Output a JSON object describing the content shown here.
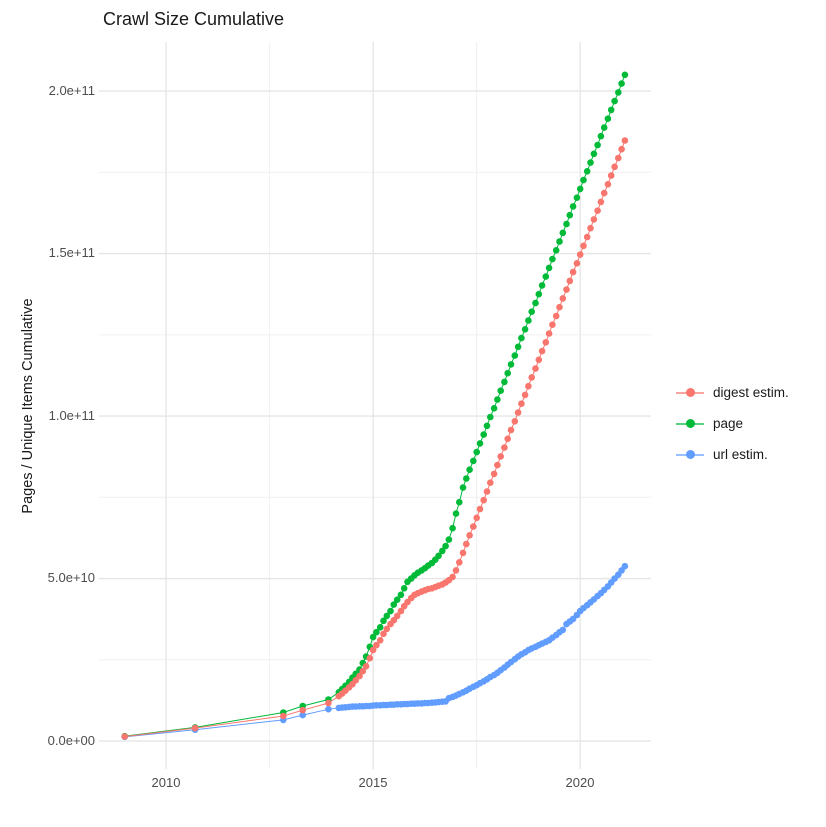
{
  "title": "Crawl Size Cumulative",
  "chart_data": {
    "type": "line",
    "subtype": "scatter-line cumulative time series (ggplot style)",
    "title": "Crawl Size Cumulative",
    "xlabel": "",
    "ylabel": "Pages / Unique Items Cumulative",
    "grid": true,
    "background": "#ffffff",
    "grid_major_color": "#e5e5e5",
    "grid_minor_color": "#f0f0f0",
    "x_tick_labels": [
      "2010",
      "2015",
      "2020"
    ],
    "x_tick_values": [
      2010,
      2015,
      2020
    ],
    "x_minor_values": [
      2012.5,
      2017.5
    ],
    "y_tick_labels": [
      "0.0e+00",
      "5.0e+10",
      "1.0e+11",
      "1.5e+11",
      "2.0e+11"
    ],
    "y_tick_values_billions": [
      0,
      50,
      100,
      150,
      200
    ],
    "y_minor_values_billions": [
      25,
      75,
      125,
      175
    ],
    "xlim": [
      2008.38,
      2021.71
    ],
    "ylim_billions": [
      -8.6,
      215.1
    ],
    "y_unit": "items, stored in billions (1e9)",
    "legend_position": "right",
    "x_years": [
      2009,
      2010.7,
      2012.83,
      2013.3,
      2013.92,
      2014.17,
      2014.25,
      2014.33,
      2014.42,
      2014.5,
      2014.58,
      2014.67,
      2014.75,
      2014.83,
      2014.92,
      2015,
      2015.08,
      2015.17,
      2015.25,
      2015.33,
      2015.42,
      2015.5,
      2015.58,
      2015.67,
      2015.75,
      2015.83,
      2015.92,
      2016,
      2016.08,
      2016.17,
      2016.25,
      2016.33,
      2016.42,
      2016.5,
      2016.58,
      2016.67,
      2016.75,
      2016.83,
      2016.92,
      2017,
      2017.08,
      2017.17,
      2017.25,
      2017.33,
      2017.42,
      2017.5,
      2017.58,
      2017.67,
      2017.75,
      2017.83,
      2017.92,
      2018,
      2018.08,
      2018.17,
      2018.25,
      2018.33,
      2018.42,
      2018.5,
      2018.58,
      2018.67,
      2018.75,
      2018.83,
      2018.92,
      2019,
      2019.08,
      2019.17,
      2019.25,
      2019.33,
      2019.42,
      2019.5,
      2019.58,
      2019.67,
      2019.75,
      2019.83,
      2019.92,
      2020,
      2020.08,
      2020.17,
      2020.25,
      2020.33,
      2020.42,
      2020.5,
      2020.58,
      2020.67,
      2020.75,
      2020.83,
      2020.92,
      2021,
      2021.08
    ],
    "series": [
      {
        "name": "digest estim.",
        "color": "#F8766D",
        "y_billions": [
          1.4,
          4.0,
          7.7,
          9.5,
          11.7,
          13.8,
          14.6,
          15.5,
          16.5,
          17.5,
          18.7,
          20,
          21.5,
          23,
          25.5,
          28,
          29.5,
          31,
          33,
          34.5,
          36,
          37.2,
          38.5,
          40,
          41.5,
          42.8,
          44,
          45,
          45.5,
          46,
          46.4,
          46.8,
          47,
          47.4,
          47.8,
          48.2,
          48.8,
          49.5,
          50.5,
          52.5,
          55,
          57.9,
          60.6,
          63.3,
          66,
          68.7,
          71.4,
          74.1,
          76.8,
          79.5,
          82.2,
          84.9,
          87.6,
          90.3,
          93,
          95.7,
          98.4,
          101.1,
          103.8,
          106.5,
          109.2,
          111.9,
          114.6,
          117.3,
          120,
          122.7,
          125.4,
          128.1,
          130.8,
          133.5,
          136.2,
          138.9,
          141.6,
          144.3,
          147,
          149.7,
          152.4,
          155.1,
          157.8,
          160.5,
          163.2,
          165.9,
          168.6,
          171.3,
          174,
          176.7,
          179.4,
          182.1,
          184.8
        ]
      },
      {
        "name": "page",
        "color": "#00BA38",
        "y_billions": [
          1.5,
          4.2,
          8.8,
          10.8,
          12.8,
          15,
          16,
          17,
          18.2,
          19.5,
          20.7,
          22,
          24,
          26,
          29,
          32,
          33.5,
          35,
          37,
          38.5,
          40,
          42,
          43.5,
          45,
          47,
          49,
          50,
          51,
          51.8,
          52.5,
          53.2,
          54,
          54.8,
          55.8,
          57,
          58.5,
          60,
          62,
          65.5,
          70,
          73.5,
          78,
          80.8,
          83.5,
          86.2,
          88.9,
          91.6,
          94.3,
          97,
          99.7,
          102.4,
          105.1,
          107.8,
          110.5,
          113.2,
          115.9,
          118.6,
          121.3,
          124,
          126.7,
          129.4,
          132.1,
          134.8,
          137.5,
          140.2,
          142.9,
          145.6,
          148.3,
          151,
          153.7,
          156.4,
          159.1,
          161.8,
          164.5,
          167.2,
          169.9,
          172.6,
          175.3,
          178,
          180.7,
          183.4,
          186.1,
          188.8,
          191.5,
          194.2,
          196.9,
          199.6,
          202.3,
          205
        ]
      },
      {
        "name": "url estim.",
        "color": "#619CFF",
        "y_billions": [
          1.3,
          3.5,
          6.5,
          8,
          9.8,
          10.2,
          10.3,
          10.4,
          10.5,
          10.6,
          10.6,
          10.7,
          10.7,
          10.8,
          10.8,
          10.9,
          11,
          11,
          11.1,
          11.1,
          11.2,
          11.2,
          11.3,
          11.3,
          11.4,
          11.4,
          11.5,
          11.5,
          11.6,
          11.6,
          11.7,
          11.7,
          11.8,
          11.9,
          12,
          12.1,
          12.2,
          13.2,
          13.6,
          14,
          14.5,
          15,
          15.5,
          16.1,
          16.7,
          17.2,
          17.8,
          18.4,
          19,
          19.7,
          20.3,
          21,
          21.8,
          22.6,
          23.5,
          24.3,
          25.2,
          26,
          26.7,
          27.3,
          28,
          28.5,
          29,
          29.5,
          30,
          30.5,
          31,
          31.8,
          32.6,
          33.5,
          34.2,
          36,
          36.8,
          37.6,
          38.8,
          40,
          40.9,
          41.8,
          42.7,
          43.6,
          44.6,
          45.5,
          46.5,
          47.6,
          48.8,
          50,
          51.2,
          52.5,
          53.8
        ]
      }
    ]
  },
  "legend": {
    "items": [
      {
        "label": "digest estim.",
        "color": "#F8766D"
      },
      {
        "label": "page",
        "color": "#00BA38"
      },
      {
        "label": "url estim.",
        "color": "#619CFF"
      }
    ]
  }
}
